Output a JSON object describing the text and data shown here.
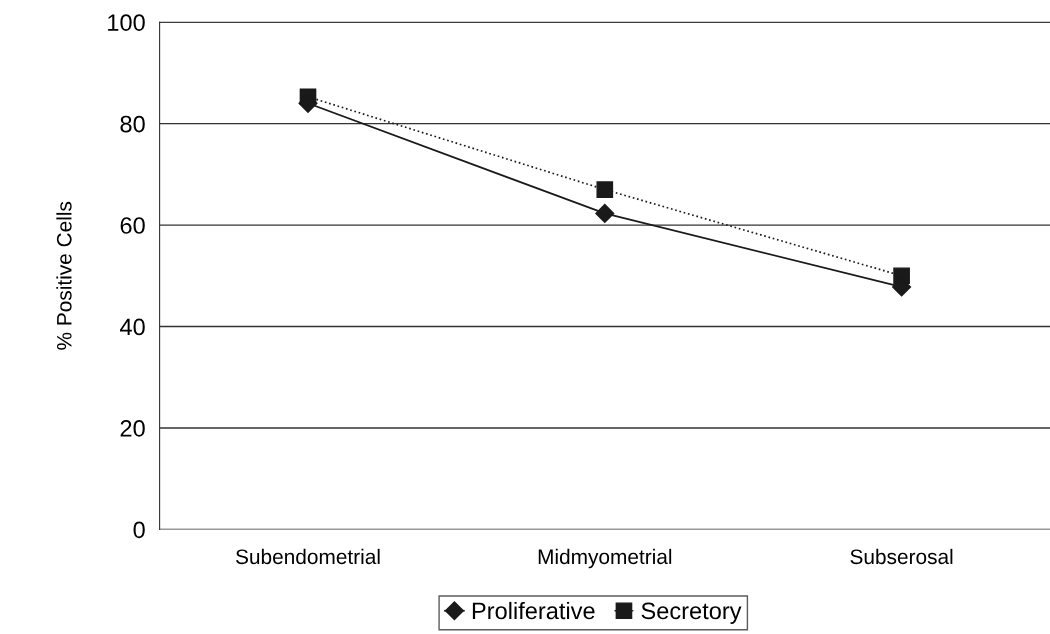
{
  "chart_data": {
    "type": "line",
    "ylabel": "% Positive Cells",
    "categories": [
      "Subendometrial",
      "Midmyometrial",
      "Subserosal"
    ],
    "series": [
      {
        "name": "Proliferative",
        "color": "#1a1a1a",
        "values": [
          84,
          62.3,
          47.8
        ],
        "marker": "diamond",
        "line_style": "solid"
      },
      {
        "name": "Secretory",
        "color": "#1a1a1a",
        "values": [
          85.3,
          67,
          50
        ],
        "marker": "square",
        "line_style": "dotted"
      }
    ],
    "ylim": [
      0,
      100
    ],
    "yticks": [
      0,
      20,
      40,
      60,
      80,
      100
    ],
    "grid": "y",
    "legend": "bottom"
  }
}
